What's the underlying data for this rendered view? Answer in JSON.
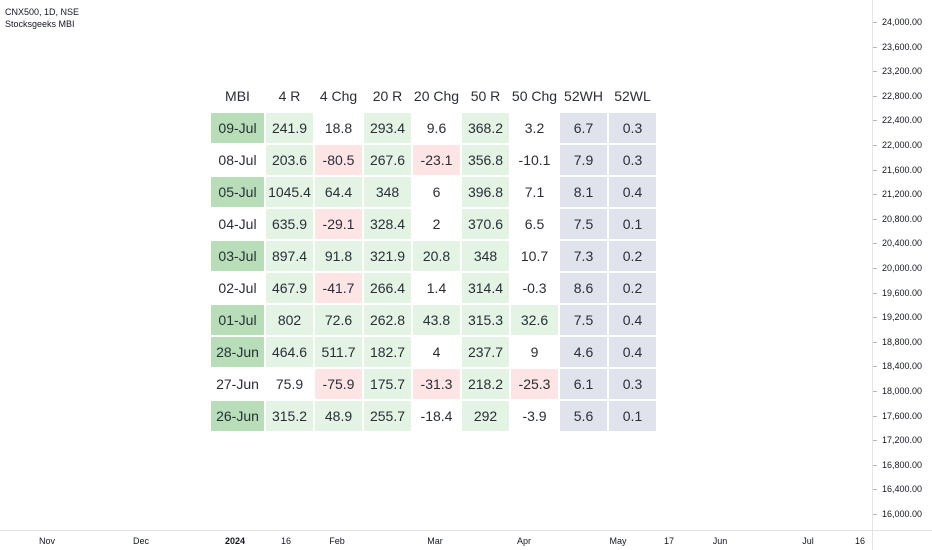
{
  "legend": {
    "symbol": "CNX500, 1D, NSE",
    "indicator": "Stocksgeeks MBI"
  },
  "price_scale": [
    "24,000.00",
    "23,600.00",
    "23,200.00",
    "22,800.00",
    "22,400.00",
    "22,000.00",
    "21,600.00",
    "21,200.00",
    "20,800.00",
    "20,400.00",
    "20,000.00",
    "19,600.00",
    "19,200.00",
    "18,800.00",
    "18,400.00",
    "18,000.00",
    "17,600.00",
    "17,200.00",
    "16,800.00",
    "16,400.00",
    "16,000.00"
  ],
  "time_scale": [
    {
      "label": "Nov",
      "bold": false
    },
    {
      "label": "Dec",
      "bold": false
    },
    {
      "label": "2024",
      "bold": true
    },
    {
      "label": "16",
      "bold": false
    },
    {
      "label": "Feb",
      "bold": false
    },
    {
      "label": "Mar",
      "bold": false
    },
    {
      "label": "Apr",
      "bold": false
    },
    {
      "label": "May",
      "bold": false
    },
    {
      "label": "17",
      "bold": false
    },
    {
      "label": "Jun",
      "bold": false
    },
    {
      "label": "Jul",
      "bold": false
    },
    {
      "label": "16",
      "bold": false
    }
  ],
  "colors": {
    "dark_green": "#b7deb9",
    "light_green": "#e3f3e4",
    "light_red": "#fde4e5",
    "gray": "#e0e3eb"
  },
  "table": {
    "headers": [
      "MBI",
      "4 R",
      "4 Chg",
      "20 R",
      "20 Chg",
      "50 R",
      "50 Chg",
      "52WH",
      "52WL"
    ],
    "rows": [
      {
        "cells": [
          "09-Jul",
          "241.9",
          "18.8",
          "293.4",
          "9.6",
          "368.2",
          "3.2",
          "6.7",
          "0.3"
        ],
        "bg": [
          "dg",
          "lg",
          "w",
          "lg",
          "w",
          "lg",
          "w",
          "gr",
          "gr"
        ]
      },
      {
        "cells": [
          "08-Jul",
          "203.6",
          "-80.5",
          "267.6",
          "-23.1",
          "356.8",
          "-10.1",
          "7.9",
          "0.3"
        ],
        "bg": [
          "w",
          "lg",
          "lr",
          "lg",
          "lr",
          "lg",
          "w",
          "gr",
          "gr"
        ]
      },
      {
        "cells": [
          "05-Jul",
          "1045.4",
          "64.4",
          "348",
          "6",
          "396.8",
          "7.1",
          "8.1",
          "0.4"
        ],
        "bg": [
          "dg",
          "lg",
          "lg",
          "lg",
          "w",
          "lg",
          "w",
          "gr",
          "gr"
        ]
      },
      {
        "cells": [
          "04-Jul",
          "635.9",
          "-29.1",
          "328.4",
          "2",
          "370.6",
          "6.5",
          "7.5",
          "0.1"
        ],
        "bg": [
          "w",
          "lg",
          "lr",
          "lg",
          "w",
          "lg",
          "w",
          "gr",
          "gr"
        ]
      },
      {
        "cells": [
          "03-Jul",
          "897.4",
          "91.8",
          "321.9",
          "20.8",
          "348",
          "10.7",
          "7.3",
          "0.2"
        ],
        "bg": [
          "dg",
          "lg",
          "lg",
          "lg",
          "lg",
          "lg",
          "w",
          "gr",
          "gr"
        ]
      },
      {
        "cells": [
          "02-Jul",
          "467.9",
          "-41.7",
          "266.4",
          "1.4",
          "314.4",
          "-0.3",
          "8.6",
          "0.2"
        ],
        "bg": [
          "w",
          "lg",
          "lr",
          "lg",
          "w",
          "lg",
          "w",
          "gr",
          "gr"
        ]
      },
      {
        "cells": [
          "01-Jul",
          "802",
          "72.6",
          "262.8",
          "43.8",
          "315.3",
          "32.6",
          "7.5",
          "0.4"
        ],
        "bg": [
          "dg",
          "lg",
          "lg",
          "lg",
          "lg",
          "lg",
          "lg",
          "gr",
          "gr"
        ]
      },
      {
        "cells": [
          "28-Jun",
          "464.6",
          "511.7",
          "182.7",
          "4",
          "237.7",
          "9",
          "4.6",
          "0.4"
        ],
        "bg": [
          "dg",
          "lg",
          "lg",
          "lg",
          "w",
          "lg",
          "w",
          "gr",
          "gr"
        ]
      },
      {
        "cells": [
          "27-Jun",
          "75.9",
          "-75.9",
          "175.7",
          "-31.3",
          "218.2",
          "-25.3",
          "6.1",
          "0.3"
        ],
        "bg": [
          "w",
          "w",
          "lr",
          "lg",
          "lr",
          "lg",
          "lr",
          "gr",
          "gr"
        ]
      },
      {
        "cells": [
          "26-Jun",
          "315.2",
          "48.9",
          "255.7",
          "-18.4",
          "292",
          "-3.9",
          "5.6",
          "0.1"
        ],
        "bg": [
          "dg",
          "lg",
          "lg",
          "lg",
          "w",
          "lg",
          "w",
          "gr",
          "gr"
        ]
      }
    ]
  }
}
